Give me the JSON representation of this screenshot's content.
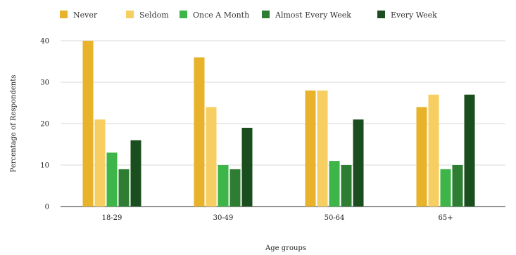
{
  "chart_data": {
    "type": "bar",
    "title": "",
    "xlabel": "Age groups",
    "ylabel": "Percentage of Respondents",
    "categories": [
      "18-29",
      "30-49",
      "50-64",
      "65+"
    ],
    "ylim": [
      0,
      40
    ],
    "yticks": [
      0,
      10,
      20,
      30,
      40
    ],
    "grid": true,
    "legend_position": "top",
    "series": [
      {
        "name": "Never",
        "color": "#E8B22A",
        "values": [
          40,
          36,
          28,
          24
        ]
      },
      {
        "name": "Seldom",
        "color": "#F6CE62",
        "values": [
          21,
          24,
          28,
          27
        ]
      },
      {
        "name": "Once A Month",
        "color": "#3DB548",
        "values": [
          13,
          10,
          11,
          9
        ]
      },
      {
        "name": "Almost Every Week",
        "color": "#2E7D32",
        "values": [
          9,
          9,
          10,
          10
        ]
      },
      {
        "name": "Every Week",
        "color": "#1B4E1F",
        "values": [
          16,
          19,
          21,
          27
        ]
      }
    ]
  }
}
